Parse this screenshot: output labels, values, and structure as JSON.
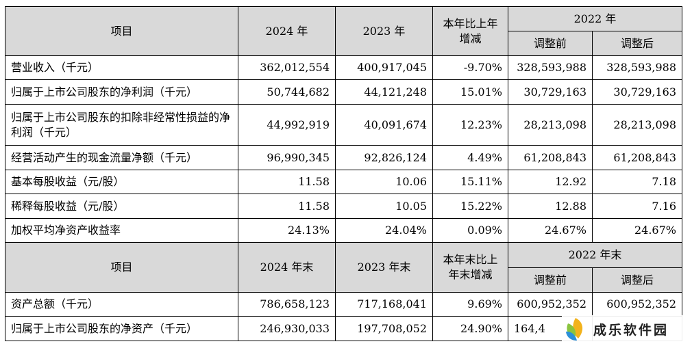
{
  "header1": {
    "item": "项目",
    "y2024": "2024 年",
    "y2023": "2023 年",
    "change": "本年比上年增减",
    "y2022": "2022 年",
    "before": "调整前",
    "after": "调整后"
  },
  "rows1": [
    {
      "label": "营业收入（千元）",
      "v2024": "362,012,554",
      "v2023": "400,917,045",
      "chg": "-9.70%",
      "before": "328,593,988",
      "after": "328,593,988"
    },
    {
      "label": "归属于上市公司股东的净利润（千元）",
      "v2024": "50,744,682",
      "v2023": "44,121,248",
      "chg": "15.01%",
      "before": "30,729,163",
      "after": "30,729,163"
    },
    {
      "label": "归属于上市公司股东的扣除非经常性损益的净利润（千元）",
      "v2024": "44,992,919",
      "v2023": "40,091,674",
      "chg": "12.23%",
      "before": "28,213,098",
      "after": "28,213,098"
    },
    {
      "label": "经营活动产生的现金流量净额（千元）",
      "v2024": "96,990,345",
      "v2023": "92,826,124",
      "chg": "4.49%",
      "before": "61,208,843",
      "after": "61,208,843"
    },
    {
      "label": "基本每股收益（元/股）",
      "v2024": "11.58",
      "v2023": "10.06",
      "chg": "15.11%",
      "before": "12.92",
      "after": "7.18"
    },
    {
      "label": "稀释每股收益（元/股）",
      "v2024": "11.58",
      "v2023": "10.05",
      "chg": "15.22%",
      "before": "12.88",
      "after": "7.16"
    },
    {
      "label": "加权平均净资产收益率",
      "v2024": "24.13%",
      "v2023": "24.04%",
      "chg": "0.09%",
      "before": "24.67%",
      "after": "24.67%"
    }
  ],
  "header2": {
    "item": "项目",
    "y2024": "2024 年末",
    "y2023": "2023 年末",
    "change": "本年末比上年末增减",
    "y2022": "2022 年末",
    "before": "调整前",
    "after": "调整后"
  },
  "rows2": [
    {
      "label": "资产总额（千元）",
      "v2024": "786,658,123",
      "v2023": "717,168,041",
      "chg": "9.69%",
      "before": "600,952,352",
      "after": "600,952,352"
    },
    {
      "label": "归属于上市公司股东的净资产（千元）",
      "v2024": "246,930,033",
      "v2023": "197,708,052",
      "chg": "24.90%",
      "before": "164,4",
      "after": ""
    }
  ],
  "watermark": {
    "text": "成乐软件园",
    "logo_icon": "leaf-logo-icon"
  }
}
